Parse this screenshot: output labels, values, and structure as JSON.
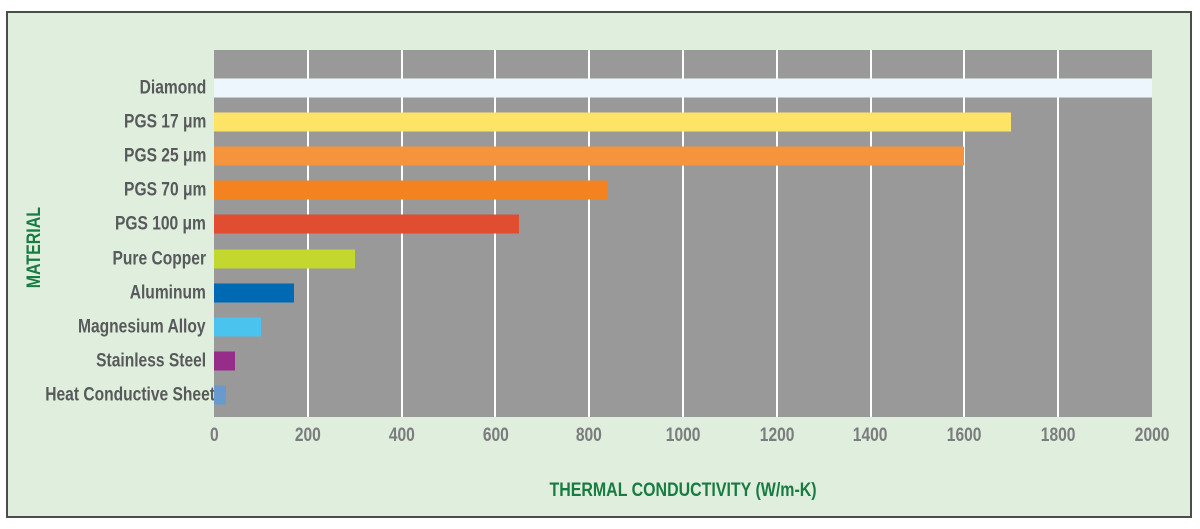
{
  "panel": {
    "background": "#dfeedd",
    "border_color": "#4c4c4c"
  },
  "chart": {
    "x_axis_title": "THERMAL CONDUCTIVITY (W/m-K)",
    "y_axis_title": "MATERIAL",
    "title_color": "#187b42",
    "label_color": "#58595b",
    "tick_color": "#7b7c7e",
    "plot_background": "#999999",
    "gridline_color": "#ffffff"
  },
  "chart_data": {
    "type": "bar",
    "orientation": "horizontal",
    "title": "",
    "xlabel": "THERMAL CONDUCTIVITY (W/m-K)",
    "ylabel": "MATERIAL",
    "xlim": [
      0,
      2000
    ],
    "x_ticks": [
      0,
      200,
      400,
      600,
      800,
      1000,
      1200,
      1400,
      1600,
      1800,
      2000
    ],
    "grid": "vertical-white-lines",
    "legend": "none",
    "categories": [
      "Diamond",
      "PGS 17 μm",
      "PGS 25 μm",
      "PGS 70 μm",
      "PGS 100 μm",
      "Pure Copper",
      "Aluminum",
      "Magnesium Alloy",
      "Stainless Steel",
      "Heat Conductive Sheet"
    ],
    "values": [
      2000,
      1700,
      1600,
      840,
      650,
      300,
      170,
      100,
      45,
      25
    ],
    "bar_colors": [
      "#ecf6fc",
      "#fde466",
      "#f5943d",
      "#f58220",
      "#e04d31",
      "#c4d72f",
      "#0069b4",
      "#4ac4ee",
      "#962d8a",
      "#6899cf"
    ]
  }
}
